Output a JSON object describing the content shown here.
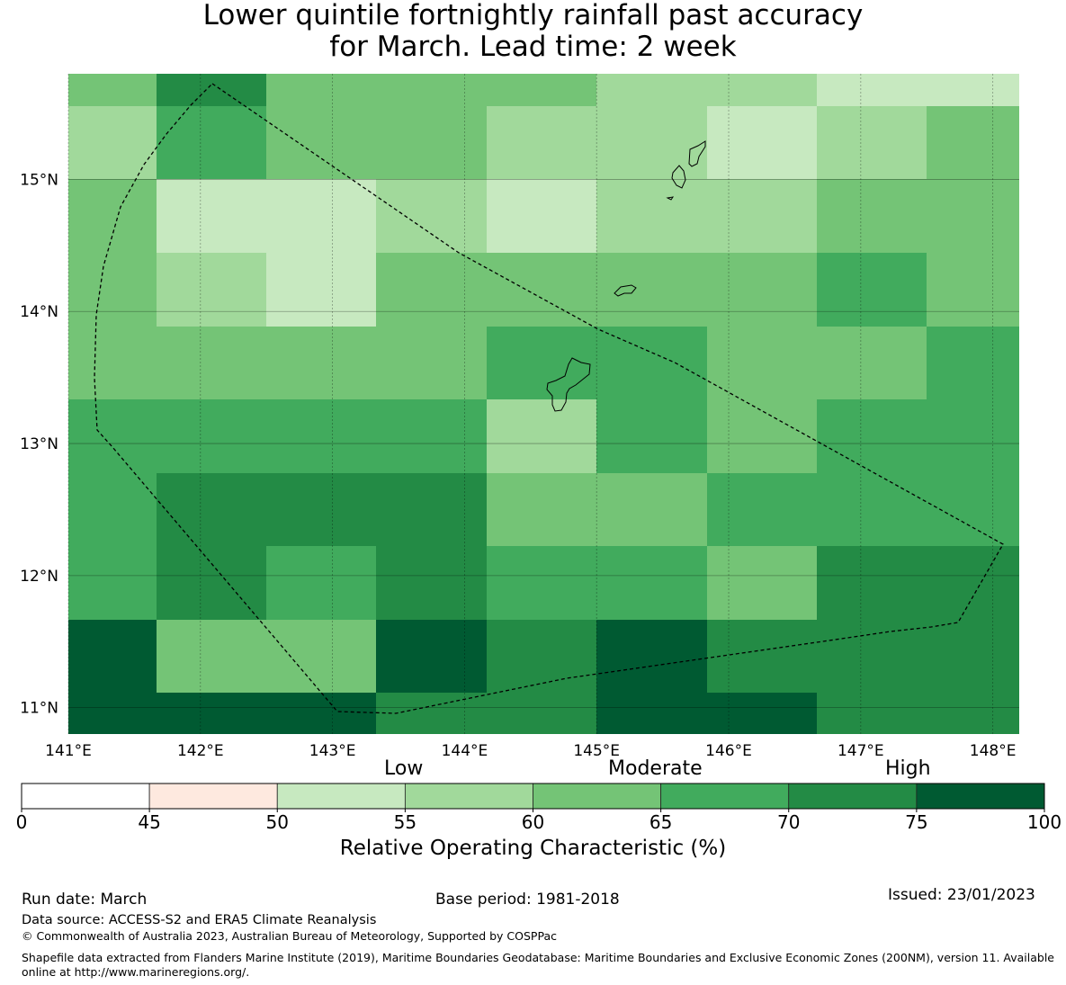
{
  "title": {
    "line1": "Lower quintile fortnightly rainfall past accuracy",
    "line2": "for March. Lead time: 2 week"
  },
  "map": {
    "lon_ticks": [
      "141°E",
      "142°E",
      "143°E",
      "144°E",
      "145°E",
      "146°E",
      "147°E",
      "148°E"
    ],
    "lat_ticks": [
      "15°N",
      "14°N",
      "13°N",
      "12°N",
      "11°N"
    ],
    "lon_range": [
      141.0,
      148.2
    ],
    "lat_range": [
      10.8,
      15.8
    ],
    "grid_lon_edges": [
      141.0,
      141.667,
      142.5,
      143.333,
      144.167,
      145.0,
      145.833,
      146.667,
      147.5,
      148.2
    ],
    "grid_lat_edges": [
      15.8,
      15.556,
      15.0,
      14.444,
      13.889,
      13.333,
      12.778,
      12.222,
      11.667,
      11.111,
      10.8
    ],
    "cells": [
      [
        4,
        6,
        4,
        4,
        4,
        3,
        3,
        2,
        2
      ],
      [
        3,
        5,
        4,
        4,
        3,
        3,
        2,
        3,
        4
      ],
      [
        4,
        2,
        2,
        3,
        2,
        3,
        3,
        4,
        4
      ],
      [
        4,
        3,
        2,
        4,
        4,
        4,
        4,
        5,
        4
      ],
      [
        4,
        4,
        4,
        4,
        5,
        5,
        4,
        4,
        5
      ],
      [
        5,
        5,
        5,
        5,
        3,
        5,
        4,
        5,
        5
      ],
      [
        5,
        6,
        6,
        6,
        4,
        4,
        5,
        5,
        5
      ],
      [
        5,
        6,
        5,
        6,
        5,
        5,
        4,
        6,
        6
      ],
      [
        7,
        4,
        4,
        7,
        6,
        7,
        6,
        6,
        6
      ],
      [
        7,
        7,
        7,
        6,
        6,
        7,
        7,
        6,
        6
      ]
    ],
    "colors": [
      "#ffffff",
      "#fee9df",
      "#c7e9c0",
      "#a1d99b",
      "#74c476",
      "#41ab5d",
      "#238b45",
      "#005a32"
    ]
  },
  "colorbar": {
    "ticks": [
      "0",
      "45",
      "50",
      "55",
      "60",
      "65",
      "70",
      "75",
      "100"
    ],
    "category_low": "Low",
    "category_moderate": "Moderate",
    "category_high": "High",
    "label": "Relative Operating Characteristic (%)"
  },
  "footer": {
    "run_date": "Run date: March",
    "base_period": "Base period: 1981-2018",
    "issued": "Issued: 23/01/2023",
    "data_source": "Data source: ACCESS-S2 and ERA5 Climate Reanalysis",
    "copyright": "© Commonwealth of Australia 2023, Australian Bureau of Meteorology, Supported by COSPPac",
    "shapefile": "Shapefile data extracted from Flanders Marine Institute (2019), Maritime Boundaries Geodatabase: Maritime Boundaries and Exclusive Economic Zones (200NM), version 11. Available online at http://www.marineregions.org/."
  }
}
